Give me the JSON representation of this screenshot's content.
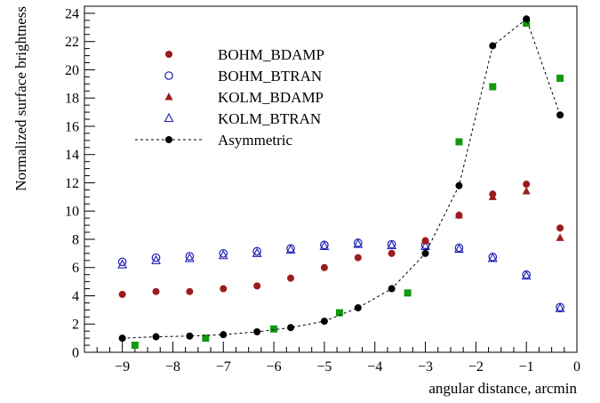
{
  "chart_data": {
    "type": "scatter",
    "title": "",
    "xlabel": "angular distance, arcmin",
    "ylabel": "Normalized surface brightness",
    "xlim": [
      -9.75,
      0
    ],
    "ylim": [
      0,
      24.5
    ],
    "x_ticks": [
      -9,
      -8,
      -7,
      -6,
      -5,
      -4,
      -3,
      -2,
      -1,
      0
    ],
    "y_ticks": [
      0,
      2,
      4,
      6,
      8,
      10,
      12,
      14,
      16,
      18,
      20,
      22,
      24
    ],
    "x_tick_labels": [
      "−9",
      "−8",
      "−7",
      "−6",
      "−5",
      "−4",
      "−3",
      "−2",
      "−1",
      "0"
    ],
    "y_tick_labels": [
      "0",
      "2",
      "4",
      "6",
      "8",
      "10",
      "12",
      "14",
      "16",
      "18",
      "20",
      "22",
      "24"
    ],
    "grid": false,
    "legend_position": "top-left",
    "series": [
      {
        "name": "BOHM_BDAMP",
        "marker": "filled-circle",
        "color": "#9b1c1c",
        "x": [
          -9.0,
          -8.333,
          -7.667,
          -7.0,
          -6.333,
          -5.667,
          -5.0,
          -4.333,
          -3.667,
          -3.0,
          -2.333,
          -1.667,
          -1.0,
          -0.333
        ],
        "y": [
          4.1,
          4.3,
          4.3,
          4.5,
          4.7,
          5.25,
          6.0,
          6.7,
          7.0,
          7.9,
          9.7,
          11.2,
          11.9,
          8.8
        ]
      },
      {
        "name": "BOHM_BTRAN",
        "marker": "open-circle",
        "color": "#1c1cb5",
        "x": [
          -9.0,
          -8.333,
          -7.667,
          -7.0,
          -6.333,
          -5.667,
          -5.0,
          -4.333,
          -3.667,
          -3.0,
          -2.333,
          -1.667,
          -1.0,
          -0.333
        ],
        "y": [
          6.4,
          6.7,
          6.8,
          7.0,
          7.15,
          7.35,
          7.6,
          7.75,
          7.65,
          7.6,
          7.4,
          6.75,
          5.5,
          3.2
        ]
      },
      {
        "name": "KOLM_BDAMP",
        "marker": "filled-triangle",
        "color": "#9b1c1c",
        "x": [
          -3.0,
          -2.333,
          -1.667,
          -1.0,
          -0.333
        ],
        "y": [
          7.9,
          9.7,
          11.0,
          11.4,
          8.1
        ]
      },
      {
        "name": "KOLM_BTRAN",
        "marker": "open-triangle",
        "color": "#1c1cb5",
        "x": [
          -9.0,
          -8.333,
          -7.667,
          -7.0,
          -6.333,
          -5.667,
          -5.0,
          -4.333,
          -3.667,
          -3.0,
          -2.333,
          -1.667,
          -1.0,
          -0.333
        ],
        "y": [
          6.2,
          6.5,
          6.65,
          6.85,
          7.0,
          7.25,
          7.5,
          7.65,
          7.55,
          7.5,
          7.3,
          6.65,
          5.4,
          3.1
        ]
      },
      {
        "name": "Asymmetric",
        "marker": "filled-circle-dashed-line",
        "color": "#000000",
        "x": [
          -9.0,
          -8.333,
          -7.667,
          -7.0,
          -6.333,
          -5.667,
          -5.0,
          -4.333,
          -3.667,
          -3.0,
          -2.333,
          -1.667,
          -1.0,
          -0.333
        ],
        "y": [
          1.0,
          1.1,
          1.15,
          1.25,
          1.45,
          1.75,
          2.2,
          3.15,
          4.5,
          7.0,
          11.8,
          21.7,
          23.6,
          16.8
        ]
      },
      {
        "name": "",
        "marker": "filled-square",
        "color": "#109a10",
        "x": [
          -8.75,
          -7.35,
          -6.0,
          -4.7,
          -3.35,
          -2.333,
          -1.667,
          -1.0,
          -0.333
        ],
        "y": [
          0.5,
          1.0,
          1.65,
          2.8,
          4.2,
          14.9,
          18.8,
          23.3,
          19.4
        ]
      }
    ]
  }
}
